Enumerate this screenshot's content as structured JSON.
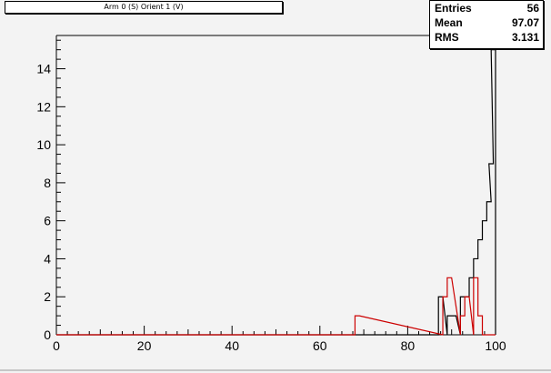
{
  "title": "Arm 0 (S) Orient 1 (V)",
  "stats": [
    {
      "label": "Entries",
      "value": "56"
    },
    {
      "label": "Mean",
      "value": "97.07"
    },
    {
      "label": "RMS",
      "value": "3.131"
    }
  ],
  "chart_data": {
    "type": "histogram",
    "xlim": [
      0,
      100
    ],
    "ylim": [
      0,
      15.75
    ],
    "bin_width": 1,
    "xticks": [
      0,
      20,
      40,
      60,
      80,
      100
    ],
    "yticks": [
      0,
      2,
      4,
      6,
      8,
      10,
      12,
      14
    ],
    "colors": {
      "black_series": "#000000",
      "red_series": "#cc0000"
    },
    "series": [
      {
        "color": "#000000",
        "bins": [
          {
            "x": 87,
            "y": 2
          },
          {
            "x": 89,
            "y": 1
          },
          {
            "x": 90,
            "y": 1
          },
          {
            "x": 92,
            "y": 2
          },
          {
            "x": 93,
            "y": 2
          },
          {
            "x": 94,
            "y": 3
          },
          {
            "x": 95,
            "y": 4
          },
          {
            "x": 96,
            "y": 5
          },
          {
            "x": 97,
            "y": 6
          },
          {
            "x": 98,
            "y": 7
          },
          {
            "x": 98.5,
            "y": 9
          },
          {
            "x": 99,
            "y": 15
          }
        ]
      },
      {
        "color": "#cc0000",
        "bins": [
          {
            "x": 68,
            "y": 1
          },
          {
            "x": 88,
            "y": 2
          },
          {
            "x": 89,
            "y": 3
          },
          {
            "x": 92,
            "y": 1
          },
          {
            "x": 93,
            "y": 2
          },
          {
            "x": 95,
            "y": 3
          },
          {
            "x": 96,
            "y": 1
          }
        ]
      }
    ]
  }
}
